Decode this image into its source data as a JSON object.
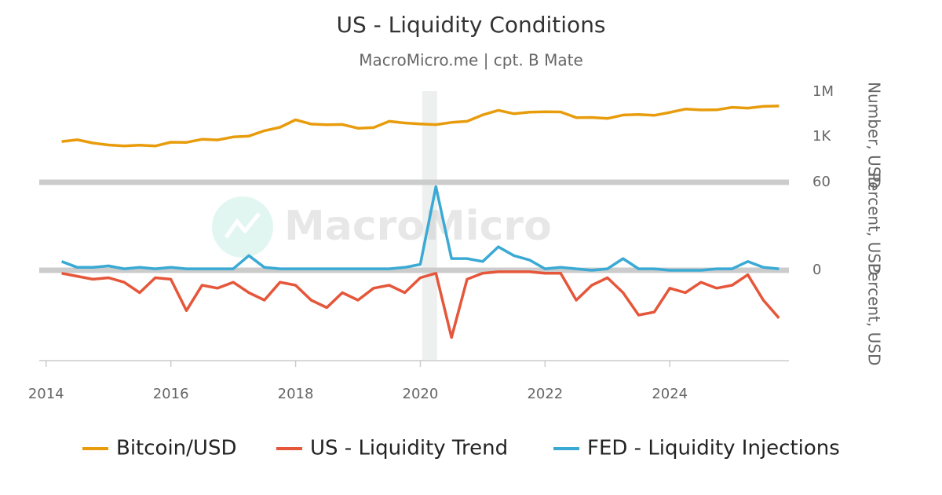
{
  "chart_data": {
    "type": "line",
    "title": "US - Liquidity Conditions",
    "subtitle": "MacroMicro.me | cpt. B Mate",
    "watermark": "MacroMicro",
    "x": [
      2014.25,
      2014.5,
      2014.75,
      2015,
      2015.25,
      2015.5,
      2015.75,
      2016,
      2016.25,
      2016.5,
      2016.75,
      2017,
      2017.25,
      2017.5,
      2017.75,
      2018,
      2018.25,
      2018.5,
      2018.75,
      2019,
      2019.25,
      2019.5,
      2019.75,
      2020,
      2020.25,
      2020.5,
      2020.75,
      2021,
      2021.25,
      2021.5,
      2021.75,
      2022,
      2022.25,
      2022.5,
      2022.75,
      2023,
      2023.25,
      2023.5,
      2023.75,
      2024,
      2024.25,
      2024.5,
      2024.75,
      2025,
      2025.25,
      2025.5,
      2025.75
    ],
    "xlim": [
      2013.89,
      2025.91
    ],
    "xticks": [
      2014,
      2016,
      2018,
      2020,
      2022,
      2024
    ],
    "shaded_regions": [
      [
        2020.03,
        2020.27
      ]
    ],
    "ylim": [
      1,
      1000000
    ],
    "yscale": "log",
    "yticks": [
      {
        "value": 1000,
        "label": "1K"
      },
      {
        "value": 1000000,
        "label": "1M"
      }
    ],
    "y_label": "Number, USD",
    "y2lim": [
      0,
      60
    ],
    "y2ticks": [
      0,
      60
    ],
    "y2_label": "Percent, USD",
    "y3lim": [
      -60,
      0
    ],
    "y3_label": "Percent, USD",
    "grid": {
      "y": false,
      "y2": true
    },
    "series": [
      {
        "name": "Bitcoin/USD",
        "color": "#e89c0c",
        "axis": "y",
        "values": [
          480,
          620,
          380,
          280,
          240,
          270,
          240,
          430,
          420,
          670,
          610,
          970,
          1100,
          2500,
          4300,
          13500,
          7000,
          6400,
          6600,
          3700,
          4100,
          10800,
          8300,
          7200,
          6500,
          9100,
          10800,
          29000,
          59000,
          35000,
          43800,
          47000,
          45500,
          19000,
          19400,
          16600,
          28500,
          30500,
          27000,
          42500,
          71000,
          62700,
          63000,
          93400,
          82500,
          107000,
          114000
        ]
      },
      {
        "name": "US - Liquidity Trend",
        "color": "#e5563a",
        "axis": "y3",
        "values": [
          -2,
          -4,
          -6,
          -5,
          -8,
          -15,
          -5,
          -6,
          -27,
          -10,
          -12,
          -8,
          -15,
          -20,
          -8,
          -10,
          -20,
          -25,
          -15,
          -20,
          -12,
          -10,
          -15,
          -5,
          -2,
          -45,
          -6,
          -2,
          -1,
          -1,
          -1,
          -2,
          -2,
          -20,
          -10,
          -5,
          -15,
          -30,
          -28,
          -12,
          -15,
          -8,
          -12,
          -10,
          -3,
          -20,
          -32
        ]
      },
      {
        "name": "FED - Liquidity Injections",
        "color": "#3aaad4",
        "axis": "y2",
        "values": [
          6,
          2,
          2,
          3,
          1,
          2,
          1,
          2,
          1,
          1,
          1,
          1,
          10,
          2,
          1,
          1,
          1,
          1,
          1,
          1,
          1,
          1,
          2,
          4,
          57,
          8,
          8,
          6,
          16,
          10,
          7,
          1,
          2,
          1,
          0,
          1,
          8,
          1,
          1,
          0,
          0,
          0,
          1,
          1,
          6,
          2,
          1
        ]
      }
    ]
  }
}
